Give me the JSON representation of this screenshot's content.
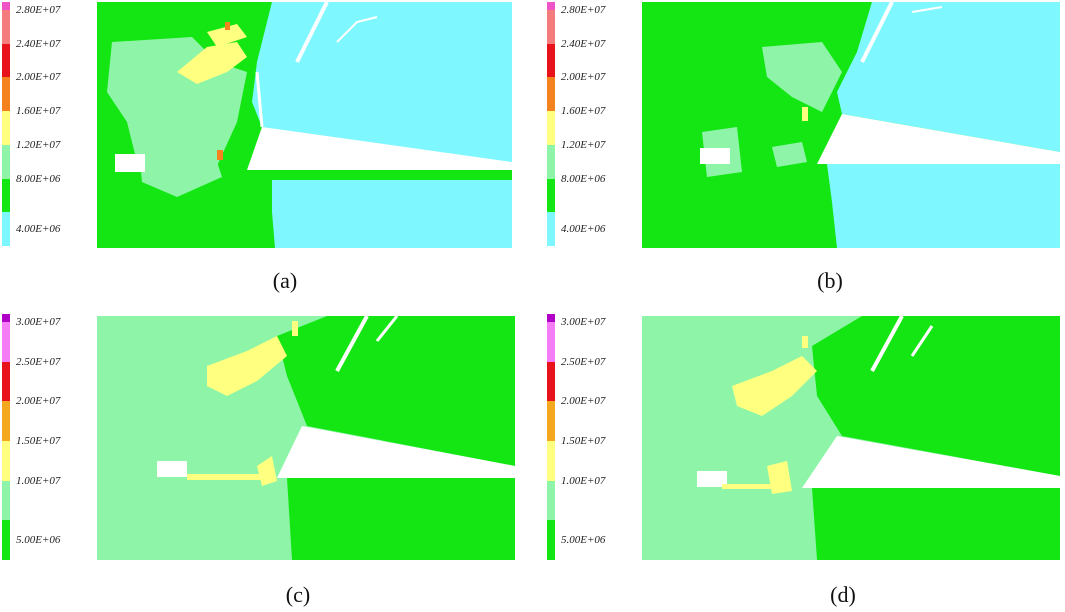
{
  "panels": [
    {
      "caption": "(a)",
      "legend": {
        "labels": [
          "2.80E+07",
          "2.40E+07",
          "2.00E+07",
          "1.60E+07",
          "1.20E+07",
          "8.00E+06",
          "4.00E+06"
        ],
        "colors": [
          "#f055c8",
          "#f47c7c",
          "#e8121b",
          "#f4821e",
          "#ffff80",
          "#8ef5a8",
          "#14e614",
          "#7ff7ff"
        ]
      }
    },
    {
      "caption": "(b)",
      "legend": {
        "labels": [
          "2.80E+07",
          "2.40E+07",
          "2.00E+07",
          "1.60E+07",
          "1.20E+07",
          "8.00E+06",
          "4.00E+06"
        ],
        "colors": [
          "#f055c8",
          "#f47c7c",
          "#e8121b",
          "#f4821e",
          "#ffff80",
          "#8ef5a8",
          "#14e614",
          "#7ff7ff"
        ]
      }
    },
    {
      "caption": "(c)",
      "legend": {
        "labels": [
          "3.00E+07",
          "2.50E+07",
          "2.00E+07",
          "1.50E+07",
          "1.00E+07",
          "5.00E+06"
        ],
        "colors": [
          "#b000c8",
          "#f47cf4",
          "#e8121b",
          "#f4a81e",
          "#ffff80",
          "#8ef5a8",
          "#14e614"
        ]
      }
    },
    {
      "caption": "(d)",
      "legend": {
        "labels": [
          "3.00E+07",
          "2.50E+07",
          "2.00E+07",
          "1.50E+07",
          "1.00E+07",
          "5.00E+06"
        ],
        "colors": [
          "#b000c8",
          "#f47cf4",
          "#e8121b",
          "#f4a81e",
          "#ffff80",
          "#8ef5a8",
          "#14e614"
        ]
      }
    }
  ]
}
